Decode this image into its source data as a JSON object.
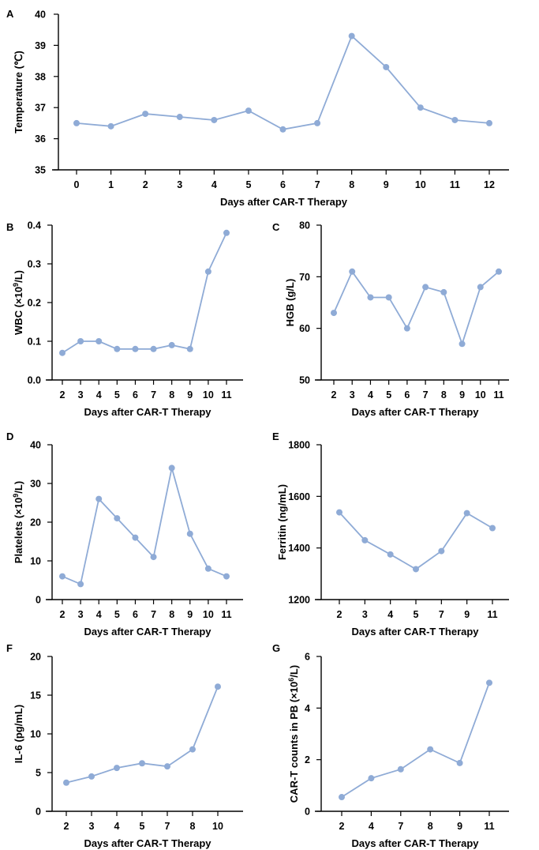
{
  "figure": {
    "accent_color": "#8fabd6"
  },
  "chart_data": [
    {
      "panel": "A",
      "type": "line",
      "x": [
        0,
        1,
        2,
        3,
        4,
        5,
        6,
        7,
        8,
        9,
        10,
        11,
        12
      ],
      "values": [
        36.5,
        36.4,
        36.8,
        36.7,
        36.6,
        36.9,
        36.3,
        36.5,
        39.3,
        38.3,
        37.0,
        36.6,
        36.5
      ],
      "xlabel": "Days after CAR-T Therapy",
      "ylabel_parts": [
        "Temperature (℃)"
      ],
      "ylim": [
        35,
        40
      ],
      "yticks": [
        35,
        36,
        37,
        38,
        39,
        40
      ],
      "ytick_labels": [
        "35",
        "36",
        "37",
        "38",
        "39",
        "40"
      ]
    },
    {
      "panel": "B",
      "type": "line",
      "x": [
        2,
        3,
        4,
        5,
        6,
        7,
        8,
        9,
        10,
        11
      ],
      "values": [
        0.07,
        0.1,
        0.1,
        0.08,
        0.08,
        0.08,
        0.09,
        0.08,
        0.28,
        0.38
      ],
      "xlabel": "Days after CAR-T Therapy",
      "ylabel_parts": [
        "WBC (×10",
        "9",
        "/L)"
      ],
      "ylim": [
        0,
        0.4
      ],
      "yticks": [
        0,
        0.1,
        0.2,
        0.3,
        0.4
      ],
      "ytick_labels": [
        "0.0",
        "0.1",
        "0.2",
        "0.3",
        "0.4"
      ]
    },
    {
      "panel": "C",
      "type": "line",
      "x": [
        2,
        3,
        4,
        5,
        6,
        7,
        8,
        9,
        10,
        11
      ],
      "values": [
        63,
        71,
        66,
        66,
        60,
        68,
        67,
        57,
        68,
        71
      ],
      "xlabel": "Days after CAR-T Therapy",
      "ylabel_parts": [
        "HGB (g/L)"
      ],
      "ylim": [
        50,
        80
      ],
      "yticks": [
        50,
        60,
        70,
        80
      ],
      "ytick_labels": [
        "50",
        "60",
        "70",
        "80"
      ]
    },
    {
      "panel": "D",
      "type": "line",
      "x": [
        2,
        3,
        4,
        5,
        6,
        7,
        8,
        9,
        10,
        11
      ],
      "values": [
        6,
        4,
        26,
        21,
        16,
        11,
        34,
        17,
        8,
        6
      ],
      "xlabel": "Days after CAR-T Therapy",
      "ylabel_parts": [
        "Platelets (×10",
        "9",
        "/L)"
      ],
      "ylim": [
        0,
        40
      ],
      "yticks": [
        0,
        10,
        20,
        30,
        40
      ],
      "ytick_labels": [
        "0",
        "10",
        "20",
        "30",
        "40"
      ]
    },
    {
      "panel": "E",
      "type": "line",
      "x": [
        2,
        3,
        4,
        5,
        7,
        9,
        11
      ],
      "values": [
        1538,
        1430,
        1375,
        1318,
        1388,
        1535,
        1477
      ],
      "xlabel": "Days after CAR-T Therapy",
      "ylabel_parts": [
        "Ferritin (ng/mL)"
      ],
      "ylim": [
        1200,
        1800
      ],
      "yticks": [
        1200,
        1400,
        1600,
        1800
      ],
      "ytick_labels": [
        "1200",
        "1400",
        "1600",
        "1800"
      ]
    },
    {
      "panel": "F",
      "type": "line",
      "x": [
        2,
        3,
        4,
        5,
        7,
        8,
        10
      ],
      "values": [
        3.7,
        4.5,
        5.6,
        6.2,
        5.8,
        8.0,
        16.1
      ],
      "xlabel": "Days after CAR-T Therapy",
      "ylabel_parts": [
        "IL-6 (pg/mL)"
      ],
      "ylim": [
        0,
        20
      ],
      "yticks": [
        0,
        5,
        10,
        15,
        20
      ],
      "ytick_labels": [
        "0",
        "5",
        "10",
        "15",
        "20"
      ]
    },
    {
      "panel": "G",
      "type": "line",
      "x": [
        2,
        4,
        7,
        8,
        9,
        11
      ],
      "values": [
        0.55,
        1.28,
        1.63,
        2.4,
        1.87,
        4.98
      ],
      "xlabel": "Days after CAR-T Therapy",
      "ylabel_parts": [
        "CAR-T counts in PB (×10",
        "6",
        "/L)"
      ],
      "ylim": [
        0,
        6
      ],
      "yticks": [
        0,
        2,
        4,
        6
      ],
      "ytick_labels": [
        "0",
        "2",
        "4",
        "6"
      ]
    }
  ]
}
